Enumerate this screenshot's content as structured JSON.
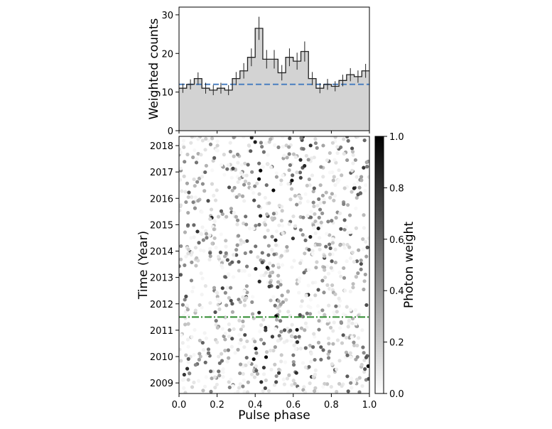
{
  "chart_data": [
    {
      "type": "bar",
      "ylabel": "Weighted counts",
      "xlim": [
        0.0,
        1.0
      ],
      "ylim": [
        0,
        32
      ],
      "yticks": [
        "0",
        "10",
        "20",
        "30"
      ],
      "background_level": 12.0,
      "background_color": "#4a7fc0",
      "fill_color": "#d3d3d3",
      "bin_edges": [
        0.0,
        0.04,
        0.08,
        0.12,
        0.16,
        0.2,
        0.24,
        0.28,
        0.32,
        0.36,
        0.4,
        0.44,
        0.48,
        0.52,
        0.56,
        0.6,
        0.64,
        0.68,
        0.72,
        0.76,
        0.8,
        0.84,
        0.88,
        0.92,
        0.96,
        1.0
      ],
      "values": [
        11.0,
        12.0,
        13.5,
        11.0,
        10.5,
        11.0,
        10.5,
        13.5,
        15.5,
        19.0,
        26.5,
        18.5,
        18.5,
        15.0,
        19.0,
        18.0,
        20.5,
        13.5,
        11.0,
        12.0,
        11.5,
        13.0,
        14.5,
        14.0,
        15.5
      ],
      "errors": [
        1.2,
        1.3,
        1.6,
        1.4,
        1.3,
        1.4,
        1.3,
        1.7,
        2.0,
        2.3,
        3.0,
        2.4,
        2.4,
        2.0,
        2.3,
        2.2,
        2.6,
        1.7,
        1.3,
        1.4,
        1.3,
        1.5,
        1.7,
        1.6,
        1.8
      ]
    },
    {
      "type": "scatter",
      "xlabel": "Pulse phase",
      "ylabel": "Time (Year)",
      "xlim": [
        0.0,
        1.0
      ],
      "ylim": [
        2008.6,
        2018.35
      ],
      "xticks": [
        "0.0",
        "0.2",
        "0.4",
        "0.6",
        "0.8",
        "1.0"
      ],
      "yticks": [
        "2009",
        "2010",
        "2011",
        "2012",
        "2013",
        "2014",
        "2015",
        "2016",
        "2017",
        "2018"
      ],
      "reference_line": {
        "y": 2011.5,
        "color": "#2e8b2e"
      },
      "point_count": 1100,
      "colorbar": {
        "label": "Photon weight",
        "range": [
          0.0,
          1.0
        ],
        "ticks": [
          "0.0",
          "0.2",
          "0.4",
          "0.6",
          "0.8",
          "1.0"
        ]
      }
    }
  ]
}
